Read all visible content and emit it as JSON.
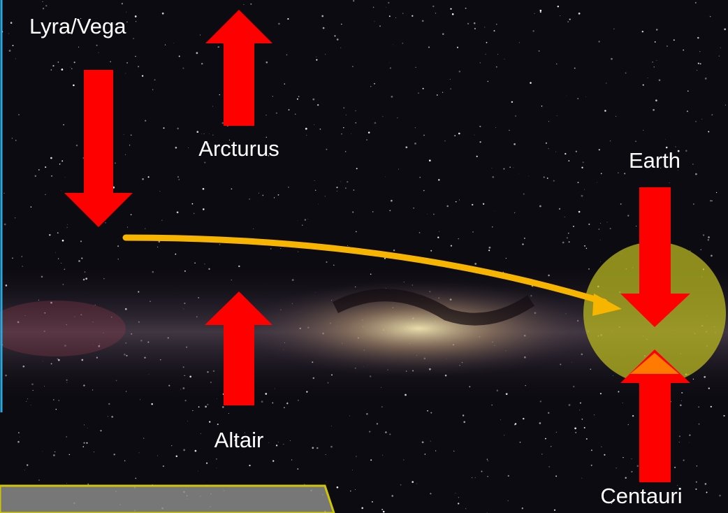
{
  "labels": {
    "vega": "Lyra/Vega",
    "arcturus": "Arcturus",
    "earth": "Earth",
    "altair": "Altair",
    "centauri": "Centauri"
  }
}
